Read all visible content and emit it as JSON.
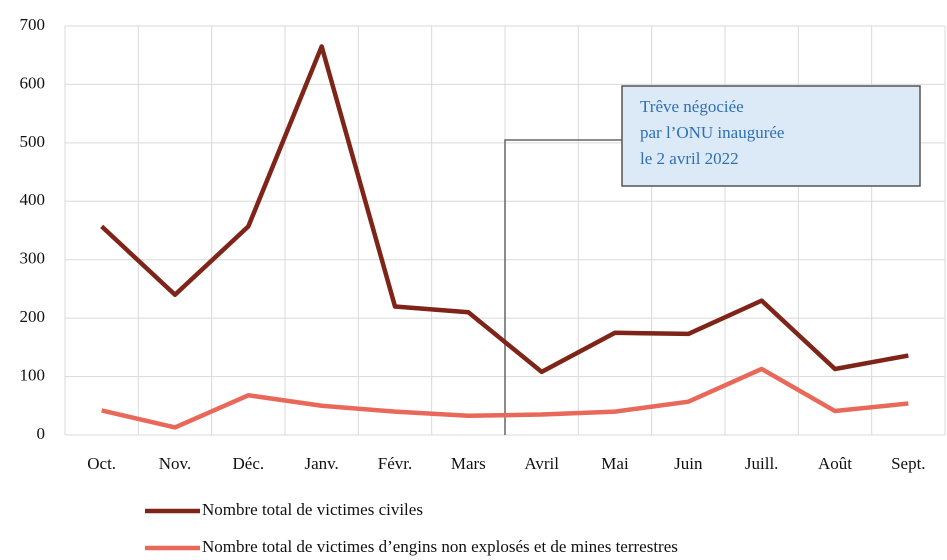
{
  "chart_data": {
    "type": "line",
    "categories": [
      "Oct.",
      "Nov.",
      "Déc.",
      "Janv.",
      "Févr.",
      "Mars",
      "Avril",
      "Mai",
      "Juin",
      "Juill.",
      "Août",
      "Sept."
    ],
    "series": [
      {
        "name": "Nombre total de victimes civiles",
        "color": "#7f2418",
        "values": [
          357,
          240,
          357,
          665,
          220,
          210,
          108,
          175,
          173,
          230,
          113,
          136
        ]
      },
      {
        "name": "Nombre total de victimes d’engins non explosés et de mines terrestres",
        "color": "#e8695a",
        "values": [
          42,
          13,
          68,
          50,
          40,
          33,
          35,
          40,
          57,
          113,
          41,
          54
        ]
      }
    ],
    "ylim": [
      0,
      700
    ],
    "yticks": [
      0,
      100,
      200,
      300,
      400,
      500,
      600,
      700
    ],
    "grid": true,
    "annotation": [
      "Trêve négociée",
      "par l’ONU inaugurée",
      "le 2 avril 2022"
    ]
  }
}
